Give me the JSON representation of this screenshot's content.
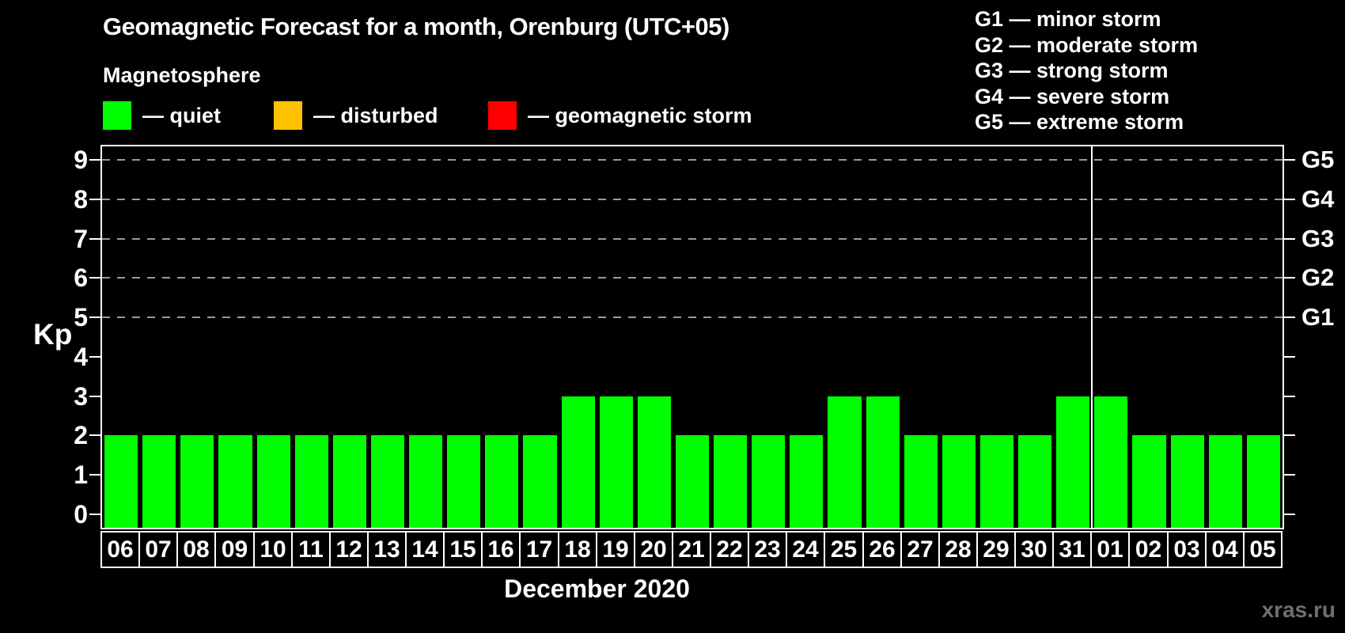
{
  "title": "Geomagnetic Forecast for a month, Orenburg (UTC+05)",
  "subtitle": "Magnetosphere",
  "legend": [
    {
      "name": "quiet",
      "label": "— quiet",
      "color": "#00ff00"
    },
    {
      "name": "disturbed",
      "label": "— disturbed",
      "color": "#ffc200"
    },
    {
      "name": "storm",
      "label": "— geomagnetic storm",
      "color": "#ff0000"
    }
  ],
  "g_legend": [
    "G1 — minor storm",
    "G2 — moderate storm",
    "G3 — strong storm",
    "G4 — severe storm",
    "G5 — extreme storm"
  ],
  "watermark": "xras.ru",
  "chart_data": {
    "type": "bar",
    "title": "Geomagnetic Forecast for a month, Orenburg (UTC+05)",
    "ylabel": "Kp",
    "xlabel": "December 2020",
    "ylim": [
      0,
      9
    ],
    "y_ticks": [
      0,
      1,
      2,
      3,
      4,
      5,
      6,
      7,
      8,
      9
    ],
    "gridlines_at": [
      5,
      6,
      7,
      8,
      9
    ],
    "grid_color": "#9a9a9a",
    "right_axis_labels": [
      {
        "kp": 5,
        "label": "G1"
      },
      {
        "kp": 6,
        "label": "G2"
      },
      {
        "kp": 7,
        "label": "G3"
      },
      {
        "kp": 8,
        "label": "G4"
      },
      {
        "kp": 9,
        "label": "G5"
      }
    ],
    "categories": [
      "06",
      "07",
      "08",
      "09",
      "10",
      "11",
      "12",
      "13",
      "14",
      "15",
      "16",
      "17",
      "18",
      "19",
      "20",
      "21",
      "22",
      "23",
      "24",
      "25",
      "26",
      "27",
      "28",
      "29",
      "30",
      "31",
      "01",
      "02",
      "03",
      "04",
      "05"
    ],
    "values": [
      2,
      2,
      2,
      2,
      2,
      2,
      2,
      2,
      2,
      2,
      2,
      2,
      3,
      3,
      3,
      2,
      2,
      2,
      2,
      3,
      3,
      2,
      2,
      2,
      2,
      3,
      3,
      2,
      2,
      2,
      2
    ],
    "bar_color": "#00ff00",
    "month_boundary_index": 26,
    "legend_position": "top"
  }
}
